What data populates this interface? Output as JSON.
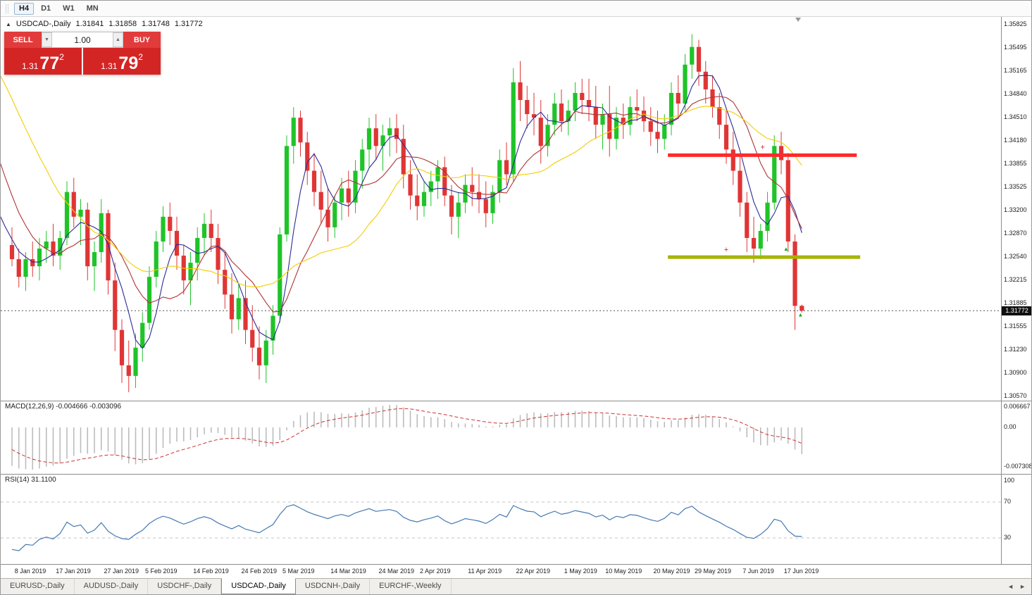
{
  "toolbar": {
    "timeframes": [
      {
        "label": "H4",
        "active": true
      },
      {
        "label": "D1",
        "active": false
      },
      {
        "label": "W1",
        "active": false
      },
      {
        "label": "MN",
        "active": false
      }
    ]
  },
  "chart_header": {
    "collapse_icon": "▲",
    "symbol": "USDCAD-,Daily",
    "open": "1.31841",
    "high": "1.31858",
    "low": "1.31748",
    "close": "1.31772"
  },
  "trade_panel": {
    "sell_label": "SELL",
    "buy_label": "BUY",
    "volume": "1.00",
    "volume_down_icon": "▼",
    "volume_up_icon": "▲",
    "sell_price": {
      "base": "1.31",
      "pips": "77",
      "sup": "2"
    },
    "buy_price": {
      "base": "1.31",
      "pips": "79",
      "sup": "2"
    }
  },
  "indicator_labels": {
    "macd": "MACD(12,26,9) -0.004666 -0.003096",
    "rsi": "RSI(14) 31.1100"
  },
  "price_axis": {
    "labels": [
      "1.35825",
      "1.35495",
      "1.35165",
      "1.34840",
      "1.34510",
      "1.34180",
      "1.33855",
      "1.33525",
      "1.33200",
      "1.32870",
      "1.32540",
      "1.32215",
      "1.31885",
      "1.31555",
      "1.31230",
      "1.30900",
      "1.30570"
    ],
    "current": "1.31772",
    "macd_labels": [
      "0.006667",
      "0.00",
      "-0.007308"
    ],
    "rsi_labels": [
      "100",
      "70",
      "30"
    ]
  },
  "time_axis": {
    "labels": [
      {
        "text": "8 Jan 2019",
        "idx": 1
      },
      {
        "text": "17 Jan 2019",
        "idx": 7
      },
      {
        "text": "27 Jan 2019",
        "idx": 14
      },
      {
        "text": "5 Feb 2019",
        "idx": 20
      },
      {
        "text": "14 Feb 2019",
        "idx": 27
      },
      {
        "text": "24 Feb 2019",
        "idx": 34
      },
      {
        "text": "5 Mar 2019",
        "idx": 40
      },
      {
        "text": "14 Mar 2019",
        "idx": 47
      },
      {
        "text": "24 Mar 2019",
        "idx": 54
      },
      {
        "text": "2 Apr 2019",
        "idx": 60
      },
      {
        "text": "11 Apr 2019",
        "idx": 67
      },
      {
        "text": "22 Apr 2019",
        "idx": 74
      },
      {
        "text": "1 May 2019",
        "idx": 81
      },
      {
        "text": "10 May 2019",
        "idx": 87
      },
      {
        "text": "20 May 2019",
        "idx": 94
      },
      {
        "text": "29 May 2019",
        "idx": 100
      },
      {
        "text": "7 Jun 2019",
        "idx": 107
      },
      {
        "text": "17 Jun 2019",
        "idx": 113
      }
    ]
  },
  "tabs": {
    "items": [
      {
        "label": "EURUSD-,Daily",
        "active": false
      },
      {
        "label": "AUDUSD-,Daily",
        "active": false
      },
      {
        "label": "USDCHF-,Daily",
        "active": false
      },
      {
        "label": "USDCAD-,Daily",
        "active": true
      },
      {
        "label": "USDCNH-,Daily",
        "active": false
      },
      {
        "label": "EURCHF-,Weekly",
        "active": false
      }
    ],
    "scroll_left": "◄",
    "scroll_right": "►"
  },
  "chart_data": {
    "type": "candlestick",
    "symbol": "USDCAD",
    "timeframe": "Daily",
    "bid": 1.31772,
    "ask": 1.31792,
    "price_axis_range": [
      1.3057,
      1.35825
    ],
    "colors": {
      "up": "#1fc428",
      "down": "#e03535",
      "macd_hist": "#bcbcbc",
      "macd_signal": "#cc3333",
      "rsi": "#4579b2",
      "levels": "#c6c6c6",
      "bid_line": "#555555"
    },
    "moving_averages": [
      {
        "period": 5,
        "color": "#2b2b96"
      },
      {
        "period": 10,
        "color": "#b03232"
      },
      {
        "period": 20,
        "color": "#f2cd00"
      }
    ],
    "hlines": [
      {
        "name": "resistance-line",
        "price": 1.3397,
        "from_idx": 95.5,
        "to_idx": 123,
        "color": "#ff2a2a",
        "width": 5
      },
      {
        "name": "support-line",
        "price": 1.3253,
        "from_idx": 95.5,
        "to_idx": 123.5,
        "color": "#a6b400",
        "width": 5
      }
    ],
    "markers": [
      {
        "i": 104,
        "p": 1.3263,
        "glyph": "+",
        "color": "#cc2222"
      },
      {
        "i": 109.3,
        "p": 1.3408,
        "glyph": "+",
        "color": "#cc2222"
      },
      {
        "i": 112.7,
        "p": 1.3265,
        "glyph": "▲",
        "color": "#1fa51f"
      },
      {
        "i": 114.8,
        "p": 1.3172,
        "glyph": "▲",
        "color": "#1fa51f"
      }
    ],
    "macd": {
      "fast": 12,
      "slow": 26,
      "signal": 9,
      "value": -0.004666,
      "signal_value": -0.003096,
      "axis_max": 0.006667,
      "axis_min": -0.007308
    },
    "rsi": {
      "period": 14,
      "value": 31.11,
      "levels": [
        30,
        70
      ]
    },
    "pre_closes": [
      1.339,
      1.341,
      1.343,
      1.345,
      1.344,
      1.346,
      1.348,
      1.35,
      1.349,
      1.351,
      1.353,
      1.355,
      1.354,
      1.356,
      1.358,
      1.36,
      1.359,
      1.361,
      1.363,
      1.364,
      1.365,
      1.366,
      1.3655,
      1.3645,
      1.365,
      1.364,
      1.363,
      1.361,
      1.358,
      1.355,
      1.351,
      1.347,
      1.343,
      1.34,
      1.337,
      1.334,
      1.331,
      1.329,
      1.3275,
      1.3265
    ],
    "candles": [
      [
        1.327,
        1.3295,
        1.324,
        1.325
      ],
      [
        1.325,
        1.3265,
        1.321,
        1.3225
      ],
      [
        1.3225,
        1.326,
        1.3205,
        1.325
      ],
      [
        1.325,
        1.3275,
        1.3225,
        1.324
      ],
      [
        1.324,
        1.328,
        1.322,
        1.3265
      ],
      [
        1.3265,
        1.329,
        1.3245,
        1.3275
      ],
      [
        1.3275,
        1.33,
        1.324,
        1.3255
      ],
      [
        1.3255,
        1.329,
        1.3235,
        1.328
      ],
      [
        1.328,
        1.336,
        1.327,
        1.3345
      ],
      [
        1.3345,
        1.3365,
        1.3295,
        1.331
      ],
      [
        1.331,
        1.3335,
        1.327,
        1.332
      ],
      [
        1.332,
        1.333,
        1.322,
        1.324
      ],
      [
        1.324,
        1.3275,
        1.3205,
        1.326
      ],
      [
        1.326,
        1.3335,
        1.3245,
        1.3315
      ],
      [
        1.3315,
        1.332,
        1.32,
        1.322
      ],
      [
        1.322,
        1.3245,
        1.312,
        1.315
      ],
      [
        1.315,
        1.3165,
        1.3075,
        1.31
      ],
      [
        1.31,
        1.3135,
        1.3062,
        1.3085
      ],
      [
        1.3085,
        1.3145,
        1.3068,
        1.3125
      ],
      [
        1.3125,
        1.3175,
        1.3105,
        1.316
      ],
      [
        1.316,
        1.324,
        1.315,
        1.3225
      ],
      [
        1.3225,
        1.329,
        1.321,
        1.3275
      ],
      [
        1.3275,
        1.3325,
        1.326,
        1.331
      ],
      [
        1.331,
        1.333,
        1.327,
        1.329
      ],
      [
        1.329,
        1.331,
        1.3235,
        1.3255
      ],
      [
        1.3255,
        1.327,
        1.32,
        1.322
      ],
      [
        1.322,
        1.326,
        1.3185,
        1.3245
      ],
      [
        1.3245,
        1.3295,
        1.322,
        1.328
      ],
      [
        1.328,
        1.3315,
        1.3255,
        1.33
      ],
      [
        1.33,
        1.332,
        1.326,
        1.328
      ],
      [
        1.328,
        1.33,
        1.3215,
        1.3235
      ],
      [
        1.3235,
        1.326,
        1.318,
        1.32
      ],
      [
        1.32,
        1.323,
        1.3145,
        1.3165
      ],
      [
        1.3165,
        1.3215,
        1.315,
        1.3195
      ],
      [
        1.3195,
        1.322,
        1.313,
        1.315
      ],
      [
        1.315,
        1.3185,
        1.3105,
        1.3125
      ],
      [
        1.3125,
        1.3155,
        1.308,
        1.31
      ],
      [
        1.31,
        1.315,
        1.3075,
        1.3135
      ],
      [
        1.3135,
        1.3185,
        1.3115,
        1.317
      ],
      [
        1.317,
        1.3295,
        1.316,
        1.3285
      ],
      [
        1.3285,
        1.3425,
        1.3275,
        1.341
      ],
      [
        1.341,
        1.3465,
        1.3385,
        1.345
      ],
      [
        1.345,
        1.346,
        1.3395,
        1.3415
      ],
      [
        1.3415,
        1.343,
        1.3355,
        1.3375
      ],
      [
        1.3375,
        1.34,
        1.3325,
        1.3345
      ],
      [
        1.3345,
        1.3375,
        1.33,
        1.332
      ],
      [
        1.332,
        1.335,
        1.3275,
        1.3295
      ],
      [
        1.3295,
        1.334,
        1.328,
        1.333
      ],
      [
        1.333,
        1.3365,
        1.3305,
        1.335
      ],
      [
        1.335,
        1.3375,
        1.331,
        1.333
      ],
      [
        1.333,
        1.339,
        1.3315,
        1.3375
      ],
      [
        1.3375,
        1.342,
        1.335,
        1.3405
      ],
      [
        1.3405,
        1.345,
        1.338,
        1.3435
      ],
      [
        1.3435,
        1.3455,
        1.339,
        1.341
      ],
      [
        1.341,
        1.344,
        1.3375,
        1.3425
      ],
      [
        1.3425,
        1.345,
        1.3395,
        1.3435
      ],
      [
        1.3435,
        1.3455,
        1.34,
        1.342
      ],
      [
        1.342,
        1.344,
        1.335,
        1.337
      ],
      [
        1.337,
        1.339,
        1.332,
        1.334
      ],
      [
        1.334,
        1.337,
        1.3305,
        1.3325
      ],
      [
        1.3325,
        1.336,
        1.331,
        1.3345
      ],
      [
        1.3345,
        1.3375,
        1.3325,
        1.336
      ],
      [
        1.336,
        1.339,
        1.3335,
        1.338
      ],
      [
        1.338,
        1.3395,
        1.3325,
        1.334
      ],
      [
        1.334,
        1.3355,
        1.3285,
        1.331
      ],
      [
        1.331,
        1.3345,
        1.328,
        1.333
      ],
      [
        1.333,
        1.337,
        1.3315,
        1.3355
      ],
      [
        1.3355,
        1.338,
        1.3325,
        1.3345
      ],
      [
        1.3345,
        1.337,
        1.3315,
        1.3335
      ],
      [
        1.3335,
        1.336,
        1.3295,
        1.3315
      ],
      [
        1.3315,
        1.3355,
        1.33,
        1.3345
      ],
      [
        1.3345,
        1.3405,
        1.333,
        1.339
      ],
      [
        1.339,
        1.3415,
        1.3355,
        1.337
      ],
      [
        1.337,
        1.352,
        1.336,
        1.35
      ],
      [
        1.35,
        1.353,
        1.3445,
        1.3475
      ],
      [
        1.3475,
        1.3495,
        1.3435,
        1.3455
      ],
      [
        1.3455,
        1.3485,
        1.3425,
        1.345
      ],
      [
        1.345,
        1.3475,
        1.3385,
        1.341
      ],
      [
        1.341,
        1.3455,
        1.3395,
        1.344
      ],
      [
        1.344,
        1.3485,
        1.3425,
        1.347
      ],
      [
        1.347,
        1.349,
        1.343,
        1.3445
      ],
      [
        1.3445,
        1.3475,
        1.3425,
        1.346
      ],
      [
        1.346,
        1.35,
        1.3445,
        1.3485
      ],
      [
        1.3485,
        1.3505,
        1.3455,
        1.3475
      ],
      [
        1.3475,
        1.3505,
        1.3445,
        1.3465
      ],
      [
        1.3465,
        1.3495,
        1.342,
        1.344
      ],
      [
        1.344,
        1.347,
        1.3405,
        1.3455
      ],
      [
        1.3455,
        1.3495,
        1.3395,
        1.342
      ],
      [
        1.342,
        1.3465,
        1.3405,
        1.345
      ],
      [
        1.345,
        1.347,
        1.342,
        1.344
      ],
      [
        1.344,
        1.348,
        1.3425,
        1.3465
      ],
      [
        1.3465,
        1.349,
        1.3445,
        1.346
      ],
      [
        1.346,
        1.348,
        1.343,
        1.3445
      ],
      [
        1.3445,
        1.3465,
        1.341,
        1.343
      ],
      [
        1.343,
        1.346,
        1.34,
        1.342
      ],
      [
        1.342,
        1.3455,
        1.3405,
        1.344
      ],
      [
        1.344,
        1.35,
        1.3425,
        1.3485
      ],
      [
        1.3485,
        1.351,
        1.345,
        1.347
      ],
      [
        1.347,
        1.354,
        1.346,
        1.3525
      ],
      [
        1.3525,
        1.3568,
        1.3505,
        1.355
      ],
      [
        1.355,
        1.356,
        1.3495,
        1.3515
      ],
      [
        1.3515,
        1.353,
        1.347,
        1.349
      ],
      [
        1.349,
        1.351,
        1.345,
        1.3465
      ],
      [
        1.3465,
        1.3485,
        1.342,
        1.344
      ],
      [
        1.344,
        1.346,
        1.3385,
        1.3405
      ],
      [
        1.3405,
        1.343,
        1.3355,
        1.3375
      ],
      [
        1.3375,
        1.3395,
        1.331,
        1.333
      ],
      [
        1.333,
        1.3345,
        1.326,
        1.328
      ],
      [
        1.328,
        1.331,
        1.3245,
        1.3265
      ],
      [
        1.3265,
        1.33,
        1.325,
        1.329
      ],
      [
        1.329,
        1.3345,
        1.3275,
        1.333
      ],
      [
        1.333,
        1.3425,
        1.332,
        1.341
      ],
      [
        1.341,
        1.343,
        1.337,
        1.339
      ],
      [
        1.339,
        1.34,
        1.326,
        1.3275
      ],
      [
        1.3275,
        1.3285,
        1.315,
        1.3184
      ],
      [
        1.31841,
        1.31858,
        1.31748,
        1.31772
      ]
    ]
  }
}
